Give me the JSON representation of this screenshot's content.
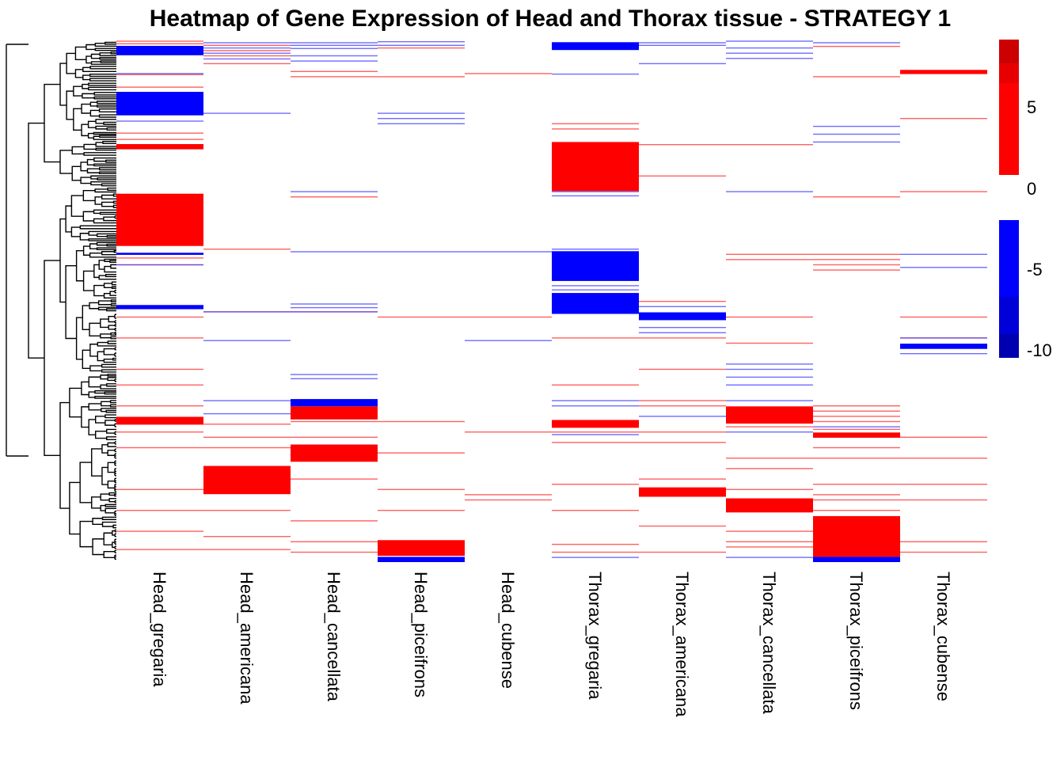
{
  "chart_data": {
    "type": "heatmap",
    "title": "Heatmap of Gene Expression of Head and Thorax tissue - STRATEGY 1",
    "columns": [
      "Head_gregaria",
      "Head_americana",
      "Head_cancellata",
      "Head_piceifrons",
      "Head_cubense",
      "Thorax_gregaria",
      "Thorax_americana",
      "Thorax_cancellata",
      "Thorax_piceifrons",
      "Thorax_cubense"
    ],
    "row_dendrogram": true,
    "value_range": [
      -10,
      9
    ],
    "legend": {
      "position": "right",
      "ticks": [
        "5",
        "0",
        "-5",
        "-10"
      ],
      "positive_colors": [
        "#ff0000",
        "#e80000",
        "#cc0000"
      ],
      "negative_colors": [
        "#0000ff",
        "#0000d8",
        "#0000b0"
      ],
      "zero_color": "#ffffff"
    },
    "blocks": [
      {
        "col": 0,
        "rows": [
          0.012,
          0.03
        ],
        "value": -6
      },
      {
        "col": 0,
        "rows": [
          0.1,
          0.145
        ],
        "value": -6
      },
      {
        "col": 0,
        "rows": [
          0.2,
          0.21
        ],
        "value": 4
      },
      {
        "col": 0,
        "rows": [
          0.295,
          0.395
        ],
        "value": 4
      },
      {
        "col": 0,
        "rows": [
          0.408,
          0.412
        ],
        "value": -4
      },
      {
        "col": 0,
        "rows": [
          0.508,
          0.516
        ],
        "value": -6
      },
      {
        "col": 0,
        "rows": [
          0.722,
          0.737
        ],
        "value": 4
      },
      {
        "col": 1,
        "rows": [
          0.816,
          0.87
        ],
        "value": 4
      },
      {
        "col": 2,
        "rows": [
          0.688,
          0.702
        ],
        "value": -6
      },
      {
        "col": 2,
        "rows": [
          0.702,
          0.727
        ],
        "value": 4
      },
      {
        "col": 2,
        "rows": [
          0.775,
          0.808
        ],
        "value": 4
      },
      {
        "col": 3,
        "rows": [
          0.958,
          0.988
        ],
        "value": 4
      },
      {
        "col": 3,
        "rows": [
          0.99,
          1.0
        ],
        "value": -6
      },
      {
        "col": 5,
        "rows": [
          0.005,
          0.02
        ],
        "value": -6
      },
      {
        "col": 5,
        "rows": [
          0.196,
          0.29
        ],
        "value": 4
      },
      {
        "col": 5,
        "rows": [
          0.405,
          0.462
        ],
        "value": -6
      },
      {
        "col": 5,
        "rows": [
          0.485,
          0.525
        ],
        "value": -6
      },
      {
        "col": 5,
        "rows": [
          0.728,
          0.743
        ],
        "value": 4
      },
      {
        "col": 6,
        "rows": [
          0.522,
          0.537
        ],
        "value": -6
      },
      {
        "col": 6,
        "rows": [
          0.857,
          0.875
        ],
        "value": 4
      },
      {
        "col": 7,
        "rows": [
          0.702,
          0.735
        ],
        "value": 4
      },
      {
        "col": 7,
        "rows": [
          0.878,
          0.905
        ],
        "value": 4
      },
      {
        "col": 8,
        "rows": [
          0.752,
          0.762
        ],
        "value": 4
      },
      {
        "col": 8,
        "rows": [
          0.912,
          0.99
        ],
        "value": 4
      },
      {
        "col": 8,
        "rows": [
          0.99,
          1.0
        ],
        "value": -6
      },
      {
        "col": 9,
        "rows": [
          0.058,
          0.066
        ],
        "value": 4
      },
      {
        "col": 9,
        "rows": [
          0.582,
          0.592
        ],
        "value": -6
      }
    ],
    "lines": [
      {
        "col": 0,
        "rows": [
          0.002,
          0.007,
          0.066,
          0.09,
          0.178,
          0.19,
          0.417,
          0.43,
          0.53,
          0.57,
          0.63,
          0.66,
          0.7,
          0.75,
          0.78,
          0.86,
          0.9,
          0.94,
          0.975
        ],
        "sign": 1
      },
      {
        "col": 0,
        "rows": [
          0.064,
          0.155,
          0.43
        ],
        "sign": -1
      },
      {
        "col": 1,
        "rows": [
          0.01,
          0.02,
          0.03,
          0.045,
          0.4,
          0.52,
          0.735,
          0.76,
          0.78,
          0.83,
          0.9,
          0.95,
          0.975
        ],
        "sign": 1
      },
      {
        "col": 1,
        "rows": [
          0.005,
          0.015,
          0.025,
          0.036,
          0.14,
          0.52,
          0.575,
          0.69,
          0.715
        ],
        "sign": -1
      },
      {
        "col": 2,
        "rows": [
          0.06,
          0.07,
          0.3,
          0.52,
          0.73,
          0.76,
          0.84,
          0.92,
          0.96,
          0.98
        ],
        "sign": 1
      },
      {
        "col": 2,
        "rows": [
          0.005,
          0.01,
          0.016,
          0.03,
          0.04,
          0.29,
          0.405,
          0.505,
          0.512,
          0.52,
          0.64,
          0.648,
          0.69
        ],
        "sign": -1
      },
      {
        "col": 3,
        "rows": [
          0.015,
          0.07,
          0.53,
          0.73,
          0.79,
          0.86,
          0.9
        ],
        "sign": 1
      },
      {
        "col": 3,
        "rows": [
          0.003,
          0.01,
          0.14,
          0.15,
          0.16,
          0.405
        ],
        "sign": -1
      },
      {
        "col": 4,
        "rows": [
          0.064,
          0.53,
          0.75,
          0.87,
          0.88
        ],
        "sign": 1
      },
      {
        "col": 4,
        "rows": [
          0.405,
          0.575
        ],
        "sign": -1
      },
      {
        "col": 5,
        "rows": [
          0.16,
          0.17,
          0.57,
          0.66,
          0.75,
          0.77,
          0.85,
          0.9,
          0.965,
          0.98
        ],
        "sign": 1
      },
      {
        "col": 5,
        "rows": [
          0.065,
          0.29,
          0.298,
          0.4,
          0.47,
          0.478,
          0.69,
          0.7,
          0.755,
          0.99
        ],
        "sign": -1
      },
      {
        "col": 6,
        "rows": [
          0.2,
          0.26,
          0.5,
          0.57,
          0.63,
          0.69,
          0.7,
          0.75,
          0.77,
          0.84,
          0.93,
          0.98
        ],
        "sign": 1
      },
      {
        "col": 6,
        "rows": [
          0.005,
          0.01,
          0.045,
          0.51,
          0.55,
          0.56,
          0.72
        ],
        "sign": -1
      },
      {
        "col": 7,
        "rows": [
          0.2,
          0.41,
          0.42,
          0.53,
          0.58,
          0.74,
          0.8,
          0.82,
          0.86,
          0.94,
          0.96,
          0.97
        ],
        "sign": 1
      },
      {
        "col": 7,
        "rows": [
          0.002,
          0.015,
          0.025,
          0.035,
          0.29,
          0.62,
          0.63,
          0.645,
          0.66,
          0.69,
          0.75,
          0.99
        ],
        "sign": -1
      },
      {
        "col": 8,
        "rows": [
          0.012,
          0.07,
          0.3,
          0.41,
          0.42,
          0.43,
          0.44,
          0.7,
          0.71,
          0.72,
          0.73,
          0.745,
          0.78,
          0.8,
          0.85,
          0.87,
          0.88,
          0.9
        ],
        "sign": 1
      },
      {
        "col": 8,
        "rows": [
          0.005,
          0.165,
          0.18,
          0.195,
          0.74
        ],
        "sign": -1
      },
      {
        "col": 9,
        "rows": [
          0.15,
          0.29,
          0.53,
          0.57,
          0.76,
          0.8,
          0.85,
          0.88,
          0.96,
          0.98
        ],
        "sign": 1
      },
      {
        "col": 9,
        "rows": [
          0.41,
          0.435,
          0.57,
          0.6
        ],
        "sign": -1
      }
    ]
  }
}
